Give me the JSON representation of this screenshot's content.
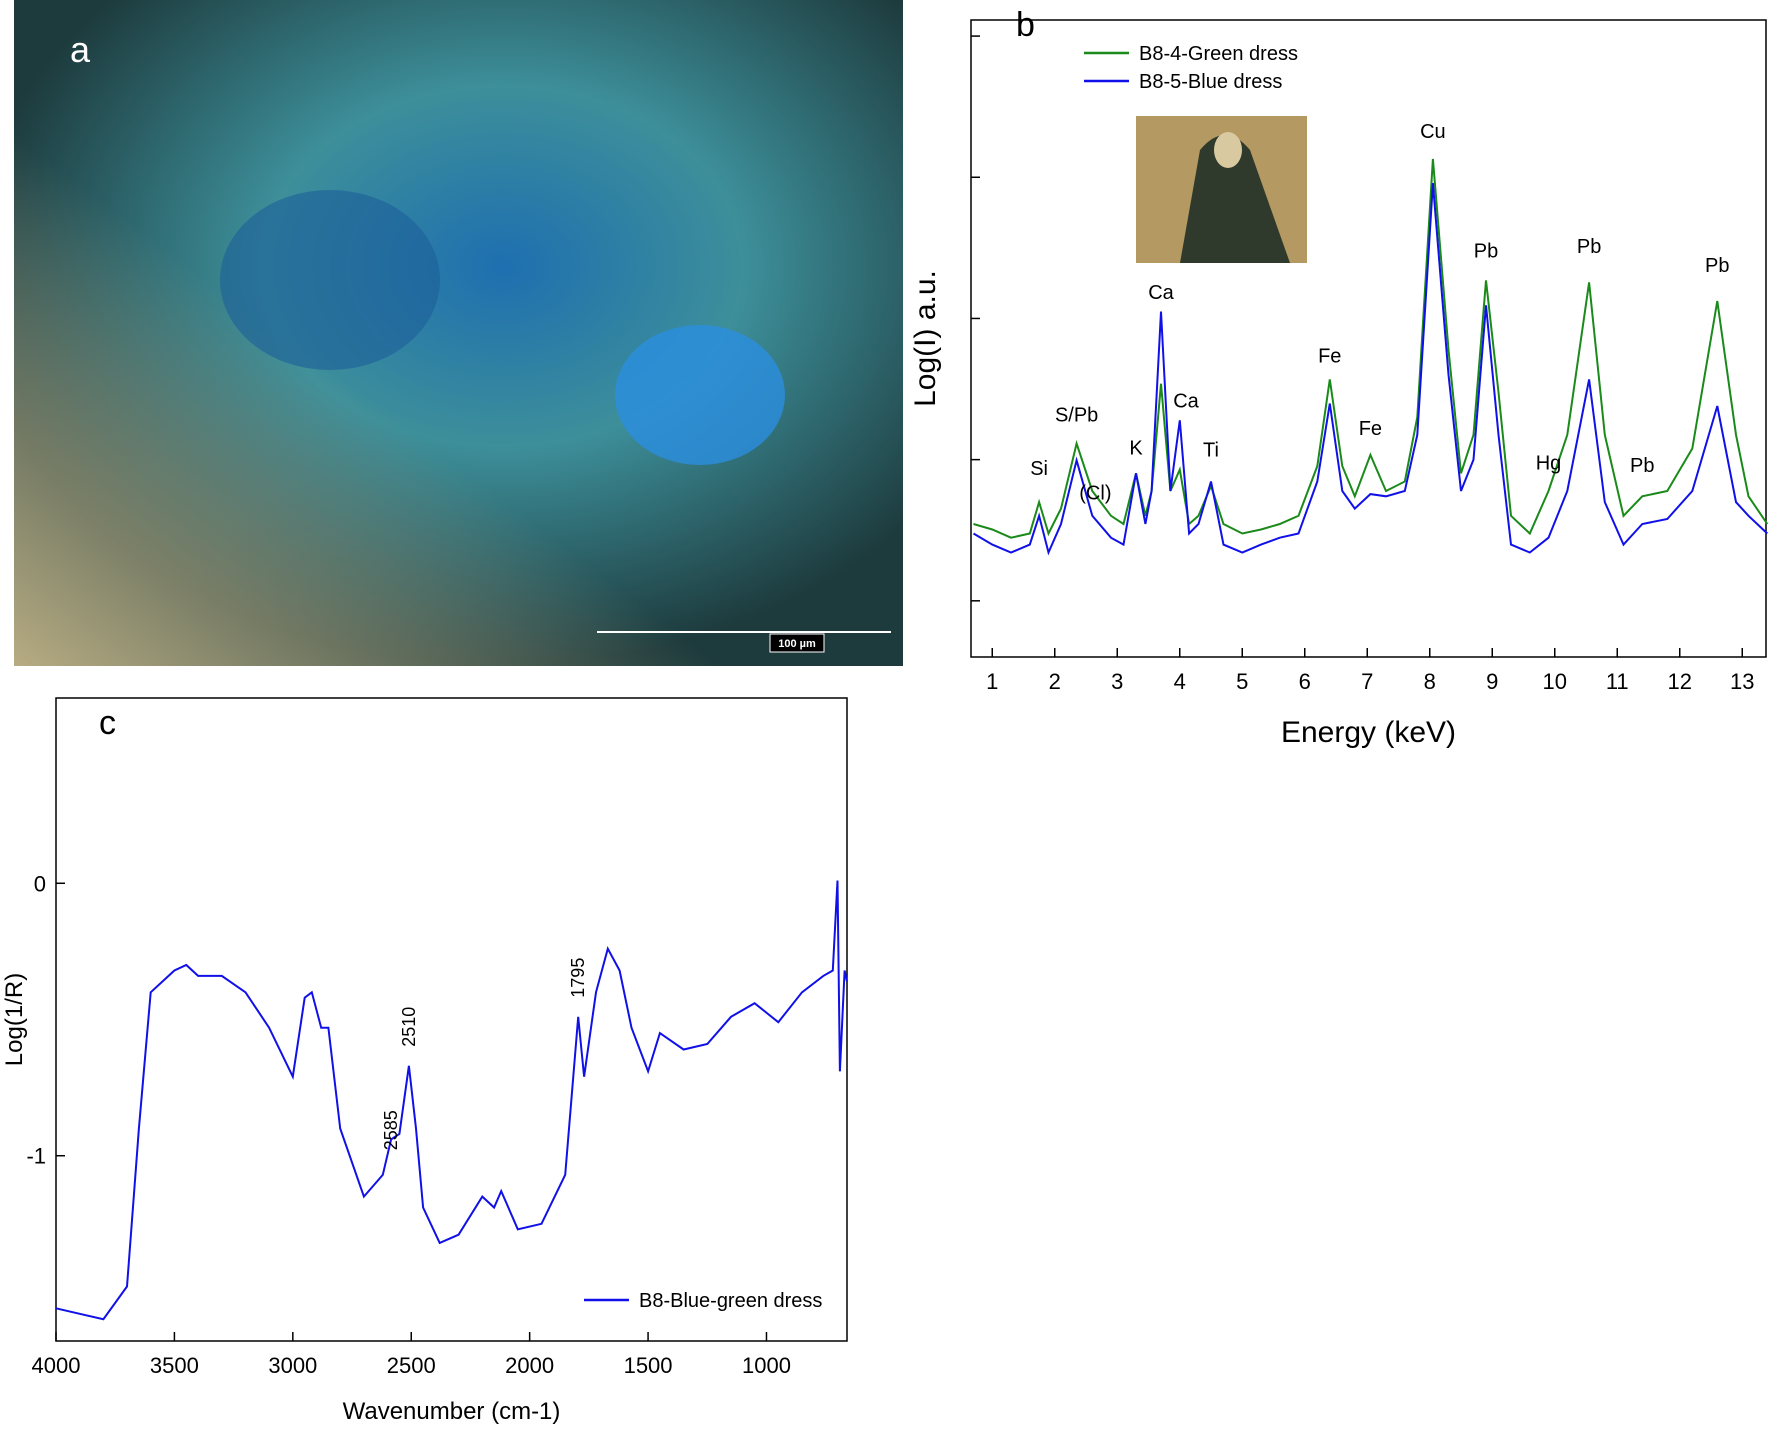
{
  "micrograph": {
    "label": "a",
    "scale_bar": "100 µm"
  },
  "chart_data": [
    {
      "type": "line",
      "panel_label": "b",
      "xlabel": "Energy (keV)",
      "ylabel": "Log(I) a.u.",
      "log_y": true,
      "ytick_labels": false,
      "legend": "upper left",
      "xlim": [
        0.66,
        13.38
      ],
      "xticks": [
        1,
        2,
        3,
        4,
        5,
        6,
        7,
        8,
        9,
        10,
        11,
        12,
        13
      ],
      "ylim": [
        4,
        130000
      ],
      "yticks": [
        10,
        100,
        1000,
        10000,
        100000
      ],
      "x": [
        0.7,
        1.0,
        1.3,
        1.6,
        1.75,
        1.9,
        2.1,
        2.35,
        2.6,
        2.9,
        3.1,
        3.3,
        3.45,
        3.55,
        3.7,
        3.85,
        4.0,
        4.15,
        4.3,
        4.5,
        4.7,
        5.0,
        5.3,
        5.6,
        5.9,
        6.2,
        6.4,
        6.6,
        6.8,
        7.05,
        7.3,
        7.6,
        7.8,
        8.05,
        8.3,
        8.5,
        8.7,
        8.9,
        9.1,
        9.3,
        9.6,
        9.9,
        10.2,
        10.55,
        10.8,
        11.1,
        11.4,
        11.8,
        12.2,
        12.6,
        12.9,
        13.1,
        13.4
      ],
      "series": [
        {
          "name": "B8-4-Green dress",
          "color": "#1a8a1a",
          "values": [
            35,
            32,
            28,
            30,
            50,
            30,
            45,
            130,
            60,
            40,
            35,
            80,
            40,
            60,
            345,
            60,
            85,
            35,
            40,
            65,
            35,
            30,
            32,
            35,
            40,
            90,
            370,
            90,
            55,
            108,
            60,
            70,
            200,
            13500,
            600,
            80,
            150,
            1860,
            300,
            40,
            30,
            60,
            150,
            1800,
            150,
            40,
            55,
            60,
            120,
            1330,
            150,
            55,
            35
          ]
        },
        {
          "name": "B8-5-Blue dress",
          "color": "#1010e8",
          "values": [
            30,
            25,
            22,
            25,
            40,
            22,
            35,
            99,
            40,
            28,
            25,
            80,
            35,
            60,
            1120,
            60,
            190,
            30,
            35,
            70,
            25,
            22,
            25,
            28,
            30,
            70,
            250,
            60,
            45,
            57,
            55,
            60,
            150,
            9100,
            400,
            60,
            100,
            1240,
            150,
            25,
            22,
            28,
            60,
            370,
            50,
            25,
            35,
            38,
            60,
            240,
            50,
            40,
            30
          ]
        }
      ],
      "annotations": [
        {
          "text": "Si",
          "x": 1.75,
          "y": 78
        },
        {
          "text": "S/Pb",
          "x": 2.35,
          "y": 187
        },
        {
          "text": "(Cl)",
          "x": 2.65,
          "y": 52
        },
        {
          "text": "K",
          "x": 3.3,
          "y": 109
        },
        {
          "text": "Ca",
          "x": 3.7,
          "y": 1370
        },
        {
          "text": "Ca",
          "x": 4.1,
          "y": 234
        },
        {
          "text": "Ti",
          "x": 4.5,
          "y": 105
        },
        {
          "text": "Fe",
          "x": 6.4,
          "y": 489
        },
        {
          "text": "Fe",
          "x": 7.05,
          "y": 150
        },
        {
          "text": "Cu",
          "x": 8.05,
          "y": 19000
        },
        {
          "text": "Pb",
          "x": 8.9,
          "y": 2700
        },
        {
          "text": "Hg",
          "x": 9.9,
          "y": 85
        },
        {
          "text": "Pb",
          "x": 10.55,
          "y": 2900
        },
        {
          "text": "Pb",
          "x": 11.4,
          "y": 82
        },
        {
          "text": "Pb",
          "x": 12.6,
          "y": 2130
        }
      ]
    },
    {
      "type": "line",
      "panel_label": "c",
      "xlabel": "Wavenumber (cm-1)",
      "ylabel": "Log(1/R)",
      "log_y": false,
      "ytick_labels": true,
      "legend": "lower right",
      "xlim": [
        4000,
        660
      ],
      "xticks": [
        4000,
        3500,
        3000,
        2500,
        2000,
        1500,
        1000
      ],
      "ylim": [
        -1.68,
        0.68
      ],
      "yticks": [
        -1,
        0
      ],
      "x": [
        4000,
        3900,
        3800,
        3700,
        3650,
        3600,
        3550,
        3500,
        3450,
        3400,
        3300,
        3200,
        3100,
        3000,
        2950,
        2920,
        2880,
        2850,
        2800,
        2700,
        2620,
        2585,
        2550,
        2510,
        2480,
        2450,
        2380,
        2300,
        2200,
        2150,
        2120,
        2050,
        1950,
        1850,
        1795,
        1770,
        1720,
        1670,
        1620,
        1570,
        1500,
        1450,
        1350,
        1250,
        1150,
        1050,
        950,
        850,
        760,
        720,
        700,
        690,
        670,
        660
      ],
      "series": [
        {
          "name": "B8-Blue-green dress",
          "color": "#1010e8",
          "values": [
            -1.56,
            -1.58,
            -1.6,
            -1.48,
            -0.9,
            -0.4,
            -0.36,
            -0.32,
            -0.3,
            -0.34,
            -0.34,
            -0.4,
            -0.53,
            -0.71,
            -0.42,
            -0.4,
            -0.53,
            -0.53,
            -0.9,
            -1.15,
            -1.07,
            -0.94,
            -0.92,
            -0.67,
            -0.9,
            -1.19,
            -1.32,
            -1.29,
            -1.15,
            -1.19,
            -1.13,
            -1.27,
            -1.25,
            -1.07,
            -0.49,
            -0.71,
            -0.4,
            -0.24,
            -0.32,
            -0.53,
            -0.69,
            -0.55,
            -0.61,
            -0.59,
            -0.49,
            -0.44,
            -0.51,
            -0.4,
            -0.34,
            -0.32,
            0.01,
            -0.69,
            -0.32,
            -0.36
          ]
        }
      ],
      "annotations": [
        {
          "text": "2585",
          "x": 2585,
          "y": -0.98,
          "rotate": true
        },
        {
          "text": "2510",
          "x": 2510,
          "y": -0.6,
          "rotate": true
        },
        {
          "text": "1795",
          "x": 1795,
          "y": -0.42,
          "rotate": true
        }
      ]
    }
  ]
}
